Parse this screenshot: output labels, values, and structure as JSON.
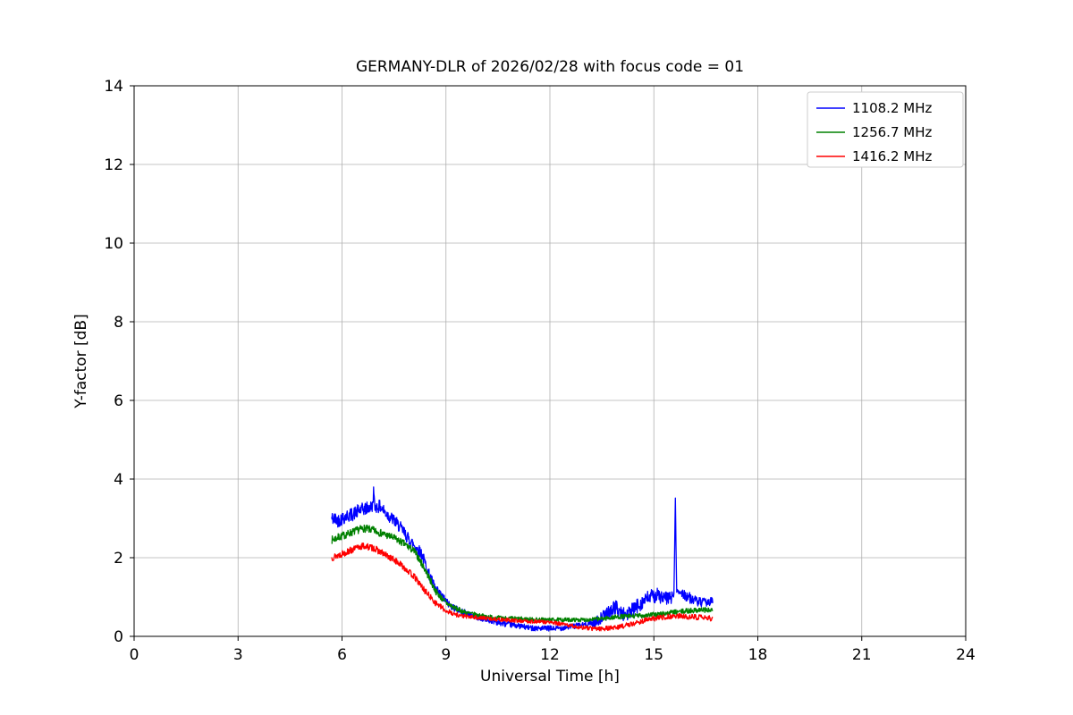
{
  "figure": {
    "background": "#ffffff"
  },
  "chart_data": {
    "type": "line",
    "title": "GERMANY-DLR of 2026/02/28 with focus code = 01",
    "xlabel": "Universal Time [h]",
    "ylabel": "Y-factor [dB]",
    "xlim": [
      0,
      24
    ],
    "ylim": [
      0,
      14
    ],
    "xticks": [
      0,
      3,
      6,
      9,
      12,
      15,
      18,
      21,
      24
    ],
    "yticks": [
      0,
      2,
      4,
      6,
      8,
      10,
      12,
      14
    ],
    "grid": true,
    "grid_color": "#b0b0b0",
    "axis_color": "#000000",
    "legend_position": "upper right",
    "series": [
      {
        "name": "1108.2 MHz",
        "color": "#0000ff",
        "seed": 42,
        "x_range": [
          5.7,
          16.7
        ],
        "anchors": [
          [
            5.7,
            3.0
          ],
          [
            5.9,
            2.95
          ],
          [
            6.1,
            3.05
          ],
          [
            6.3,
            3.1
          ],
          [
            6.5,
            3.2
          ],
          [
            6.7,
            3.25
          ],
          [
            6.88,
            3.3
          ],
          [
            6.91,
            3.72
          ],
          [
            6.94,
            3.3
          ],
          [
            7.1,
            3.3
          ],
          [
            7.3,
            3.1
          ],
          [
            7.5,
            2.95
          ],
          [
            7.7,
            2.75
          ],
          [
            7.9,
            2.5
          ],
          [
            8.1,
            2.3
          ],
          [
            8.3,
            2.1
          ],
          [
            8.5,
            1.6
          ],
          [
            8.7,
            1.2
          ],
          [
            8.9,
            1.0
          ],
          [
            9.1,
            0.8
          ],
          [
            9.4,
            0.65
          ],
          [
            9.7,
            0.55
          ],
          [
            10.0,
            0.45
          ],
          [
            10.3,
            0.4
          ],
          [
            10.6,
            0.33
          ],
          [
            11.0,
            0.28
          ],
          [
            11.4,
            0.22
          ],
          [
            11.8,
            0.2
          ],
          [
            12.2,
            0.2
          ],
          [
            12.6,
            0.25
          ],
          [
            13.0,
            0.3
          ],
          [
            13.3,
            0.35
          ],
          [
            13.6,
            0.55
          ],
          [
            13.9,
            0.75
          ],
          [
            14.1,
            0.55
          ],
          [
            14.3,
            0.6
          ],
          [
            14.5,
            0.75
          ],
          [
            14.7,
            0.9
          ],
          [
            14.9,
            1.0
          ],
          [
            15.1,
            1.05
          ],
          [
            15.3,
            0.95
          ],
          [
            15.5,
            1.0
          ],
          [
            15.58,
            1.05
          ],
          [
            15.62,
            3.5
          ],
          [
            15.66,
            1.15
          ],
          [
            15.8,
            1.1
          ],
          [
            16.0,
            1.0
          ],
          [
            16.2,
            0.9
          ],
          [
            16.4,
            0.85
          ],
          [
            16.7,
            0.9
          ]
        ],
        "noise_anchors": [
          [
            5.7,
            0.18
          ],
          [
            8.3,
            0.15
          ],
          [
            9.0,
            0.1
          ],
          [
            9.8,
            0.07
          ],
          [
            13.0,
            0.07
          ],
          [
            13.5,
            0.15
          ],
          [
            14.2,
            0.2
          ],
          [
            15.5,
            0.18
          ],
          [
            15.55,
            0.05
          ],
          [
            15.7,
            0.05
          ],
          [
            15.8,
            0.15
          ],
          [
            16.7,
            0.1
          ]
        ]
      },
      {
        "name": "1256.7 MHz",
        "color": "#008000",
        "seed": 7,
        "x_range": [
          5.7,
          16.7
        ],
        "anchors": [
          [
            5.7,
            2.45
          ],
          [
            6.0,
            2.55
          ],
          [
            6.3,
            2.65
          ],
          [
            6.6,
            2.75
          ],
          [
            6.9,
            2.7
          ],
          [
            7.2,
            2.6
          ],
          [
            7.5,
            2.5
          ],
          [
            7.8,
            2.35
          ],
          [
            8.1,
            2.15
          ],
          [
            8.4,
            1.7
          ],
          [
            8.7,
            1.15
          ],
          [
            9.0,
            0.85
          ],
          [
            9.3,
            0.7
          ],
          [
            9.6,
            0.6
          ],
          [
            10.0,
            0.52
          ],
          [
            10.5,
            0.47
          ],
          [
            11.0,
            0.45
          ],
          [
            11.5,
            0.43
          ],
          [
            12.0,
            0.42
          ],
          [
            12.5,
            0.42
          ],
          [
            13.0,
            0.42
          ],
          [
            13.5,
            0.45
          ],
          [
            14.0,
            0.5
          ],
          [
            14.5,
            0.52
          ],
          [
            15.0,
            0.55
          ],
          [
            15.5,
            0.6
          ],
          [
            16.0,
            0.65
          ],
          [
            16.4,
            0.68
          ],
          [
            16.7,
            0.65
          ]
        ],
        "noise_anchors": [
          [
            5.7,
            0.1
          ],
          [
            8.5,
            0.09
          ],
          [
            9.5,
            0.06
          ],
          [
            13.0,
            0.05
          ],
          [
            14.0,
            0.06
          ],
          [
            16.7,
            0.07
          ]
        ]
      },
      {
        "name": "1416.2 MHz",
        "color": "#ff0000",
        "seed": 13,
        "x_range": [
          5.7,
          16.7
        ],
        "anchors": [
          [
            5.7,
            2.0
          ],
          [
            6.0,
            2.1
          ],
          [
            6.3,
            2.2
          ],
          [
            6.6,
            2.3
          ],
          [
            6.9,
            2.25
          ],
          [
            7.2,
            2.1
          ],
          [
            7.5,
            1.95
          ],
          [
            7.8,
            1.75
          ],
          [
            8.1,
            1.5
          ],
          [
            8.4,
            1.15
          ],
          [
            8.7,
            0.85
          ],
          [
            9.0,
            0.65
          ],
          [
            9.3,
            0.55
          ],
          [
            9.6,
            0.5
          ],
          [
            10.0,
            0.47
          ],
          [
            10.5,
            0.43
          ],
          [
            11.0,
            0.4
          ],
          [
            11.5,
            0.38
          ],
          [
            12.0,
            0.36
          ],
          [
            12.4,
            0.3
          ],
          [
            12.8,
            0.24
          ],
          [
            13.2,
            0.2
          ],
          [
            13.6,
            0.2
          ],
          [
            14.0,
            0.24
          ],
          [
            14.4,
            0.32
          ],
          [
            14.8,
            0.42
          ],
          [
            15.2,
            0.48
          ],
          [
            15.6,
            0.52
          ],
          [
            16.0,
            0.5
          ],
          [
            16.4,
            0.48
          ],
          [
            16.7,
            0.45
          ]
        ],
        "noise_anchors": [
          [
            5.7,
            0.09
          ],
          [
            8.5,
            0.08
          ],
          [
            9.5,
            0.05
          ],
          [
            12.5,
            0.05
          ],
          [
            13.5,
            0.06
          ],
          [
            16.7,
            0.07
          ]
        ]
      }
    ]
  }
}
